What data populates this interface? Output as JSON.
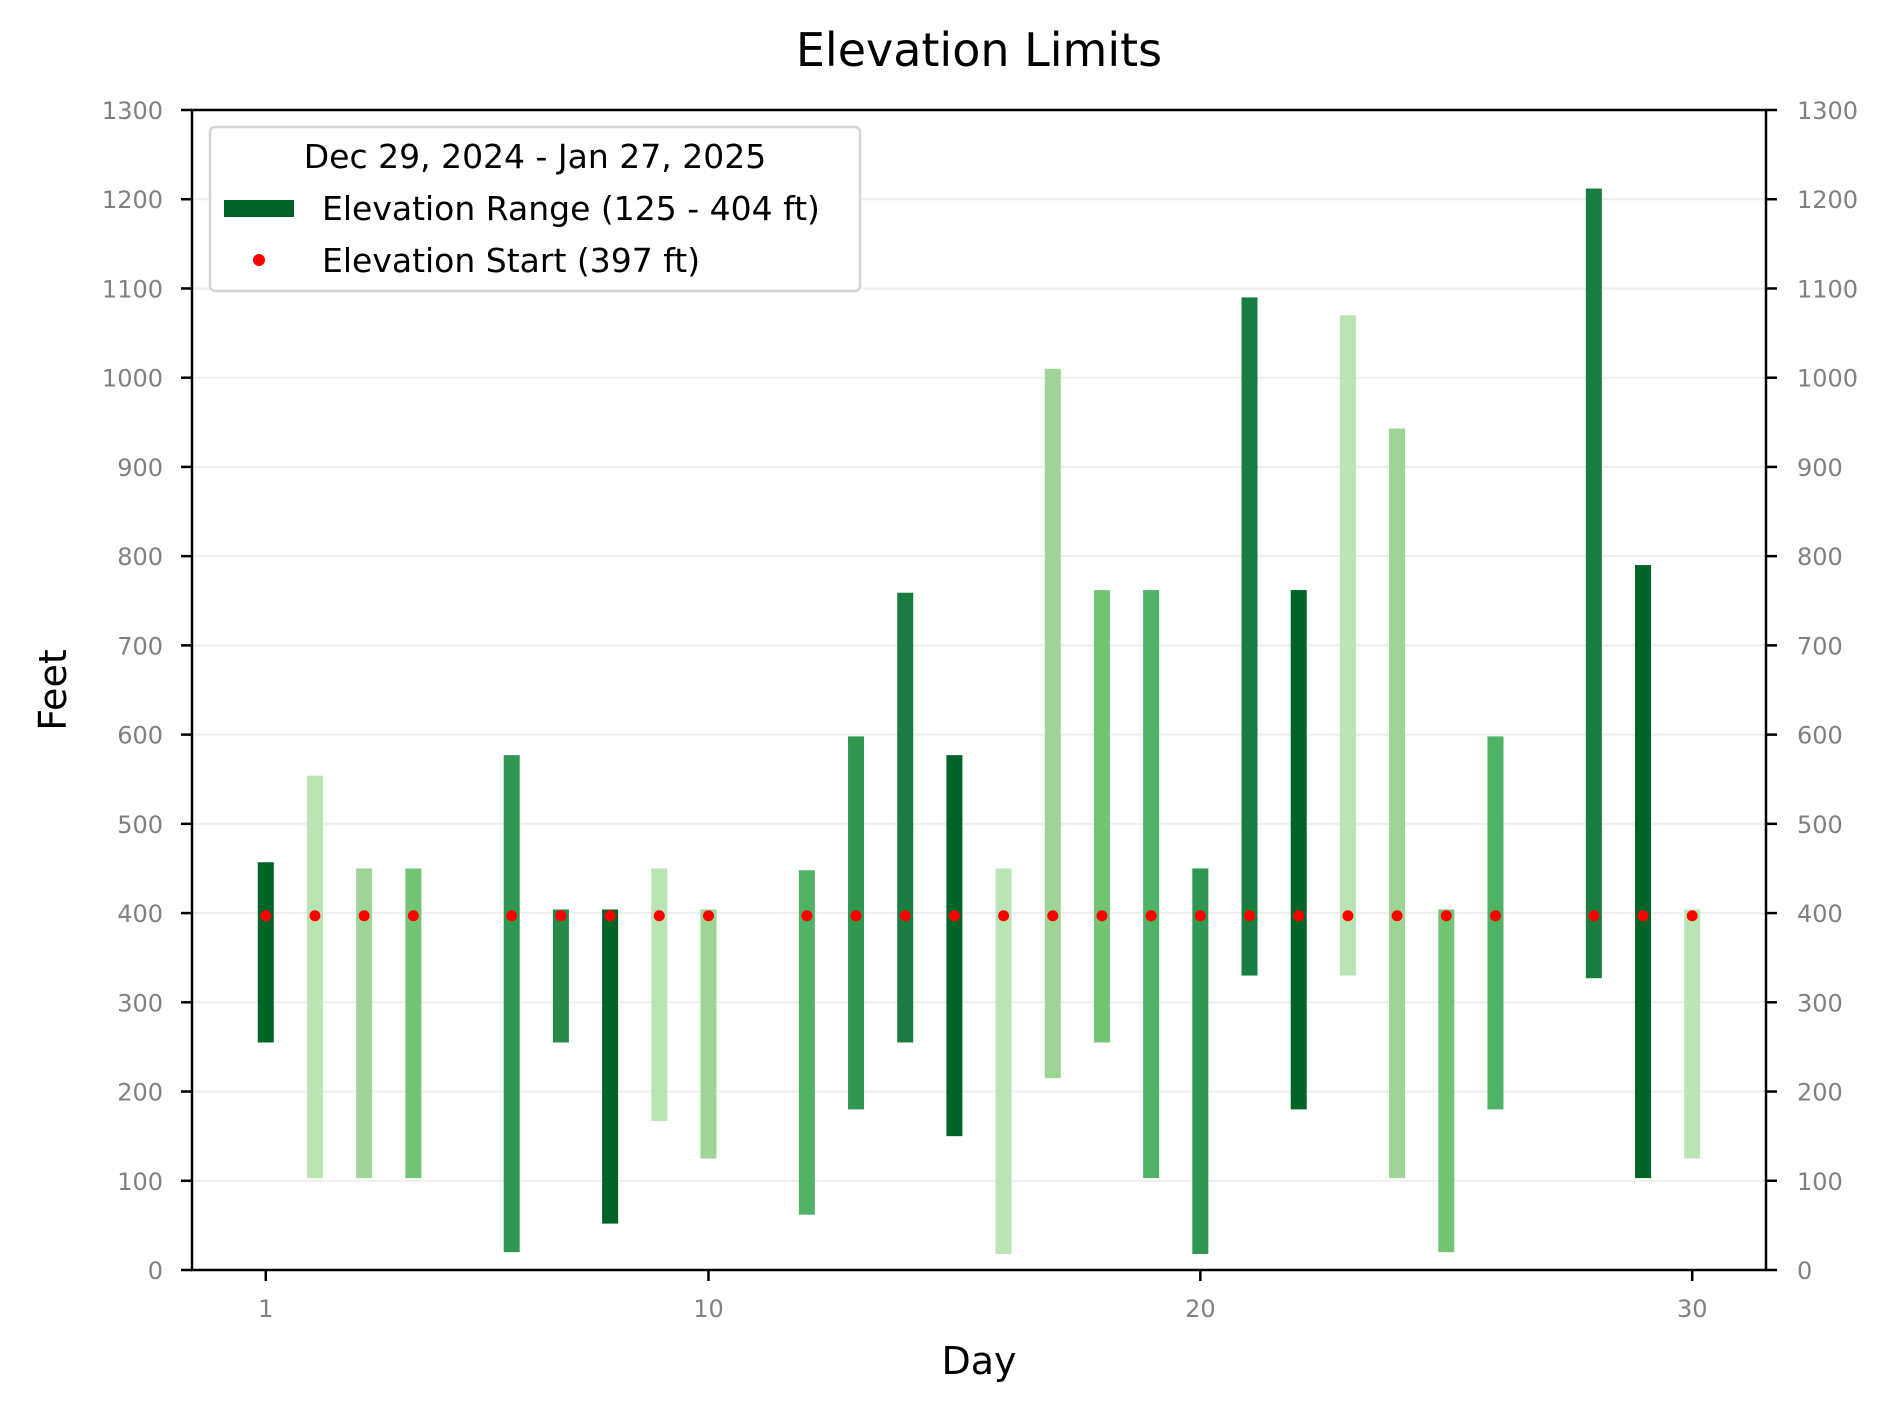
{
  "chart_data": {
    "type": "bar",
    "title": "Elevation Limits",
    "xlabel": "Day",
    "ylabel": "Feet",
    "xlim": [
      -0.5,
      31.5
    ],
    "ylim": [
      0,
      1300
    ],
    "xticks": [
      1,
      10,
      20,
      30
    ],
    "yticks": [
      0,
      100,
      200,
      300,
      400,
      500,
      600,
      700,
      800,
      900,
      1000,
      1100,
      1200,
      1300
    ],
    "grid": "horizontal",
    "legend": {
      "placement": "top-left",
      "title": "Dec 29, 2024 - Jan 27, 2025",
      "entries": [
        {
          "label": "Elevation Range (125 - 404 ft)",
          "kind": "bar",
          "color": "#006428"
        },
        {
          "label": "Elevation Start (397 ft)",
          "kind": "point",
          "color": "#ff0000"
        }
      ]
    },
    "start_color": "#ff0000",
    "series": [
      {
        "day": 1,
        "low": 255,
        "high": 457,
        "start": 397,
        "color": "#006428"
      },
      {
        "day": 2,
        "low": 103,
        "high": 554,
        "start": 397,
        "color": "#b9e4b3"
      },
      {
        "day": 3,
        "low": 103,
        "high": 450,
        "start": 397,
        "color": "#9dd595"
      },
      {
        "day": 4,
        "low": 103,
        "high": 450,
        "start": 397,
        "color": "#74c476"
      },
      {
        "day": 6,
        "low": 20,
        "high": 577,
        "start": 397,
        "color": "#2f974f"
      },
      {
        "day": 7,
        "low": 255,
        "high": 404,
        "start": 397,
        "color": "#268b48"
      },
      {
        "day": 8,
        "low": 52,
        "high": 404,
        "start": 397,
        "color": "#006428"
      },
      {
        "day": 9,
        "low": 167,
        "high": 450,
        "start": 397,
        "color": "#b9e4b3"
      },
      {
        "day": 10,
        "low": 125,
        "high": 404,
        "start": 397,
        "color": "#9dd595"
      },
      {
        "day": 12,
        "low": 62,
        "high": 448,
        "start": 397,
        "color": "#4fb264"
      },
      {
        "day": 13,
        "low": 180,
        "high": 598,
        "start": 397,
        "color": "#2f974f"
      },
      {
        "day": 14,
        "low": 255,
        "high": 759,
        "start": 397,
        "color": "#1a7d40"
      },
      {
        "day": 15,
        "low": 150,
        "high": 577,
        "start": 397,
        "color": "#006428"
      },
      {
        "day": 16,
        "low": 18,
        "high": 450,
        "start": 397,
        "color": "#b9e4b3"
      },
      {
        "day": 17,
        "low": 215,
        "high": 1010,
        "start": 397,
        "color": "#9dd595"
      },
      {
        "day": 18,
        "low": 255,
        "high": 762,
        "start": 397,
        "color": "#74c476"
      },
      {
        "day": 19,
        "low": 103,
        "high": 762,
        "start": 397,
        "color": "#4fb264"
      },
      {
        "day": 20,
        "low": 18,
        "high": 450,
        "start": 397,
        "color": "#2f974f"
      },
      {
        "day": 21,
        "low": 330,
        "high": 1090,
        "start": 397,
        "color": "#1a7d40"
      },
      {
        "day": 22,
        "low": 180,
        "high": 762,
        "start": 397,
        "color": "#006428"
      },
      {
        "day": 23,
        "low": 330,
        "high": 1070,
        "start": 397,
        "color": "#b9e4b3"
      },
      {
        "day": 24,
        "low": 103,
        "high": 943,
        "start": 397,
        "color": "#9dd595"
      },
      {
        "day": 25,
        "low": 20,
        "high": 404,
        "start": 397,
        "color": "#74c476"
      },
      {
        "day": 26,
        "low": 180,
        "high": 598,
        "start": 397,
        "color": "#4fb264"
      },
      {
        "day": 28,
        "low": 327,
        "high": 1212,
        "start": 397,
        "color": "#1a7d40"
      },
      {
        "day": 29,
        "low": 103,
        "high": 790,
        "start": 397,
        "color": "#006428"
      },
      {
        "day": 30,
        "low": 125,
        "high": 404,
        "start": 397,
        "color": "#b9e4b3"
      }
    ]
  }
}
